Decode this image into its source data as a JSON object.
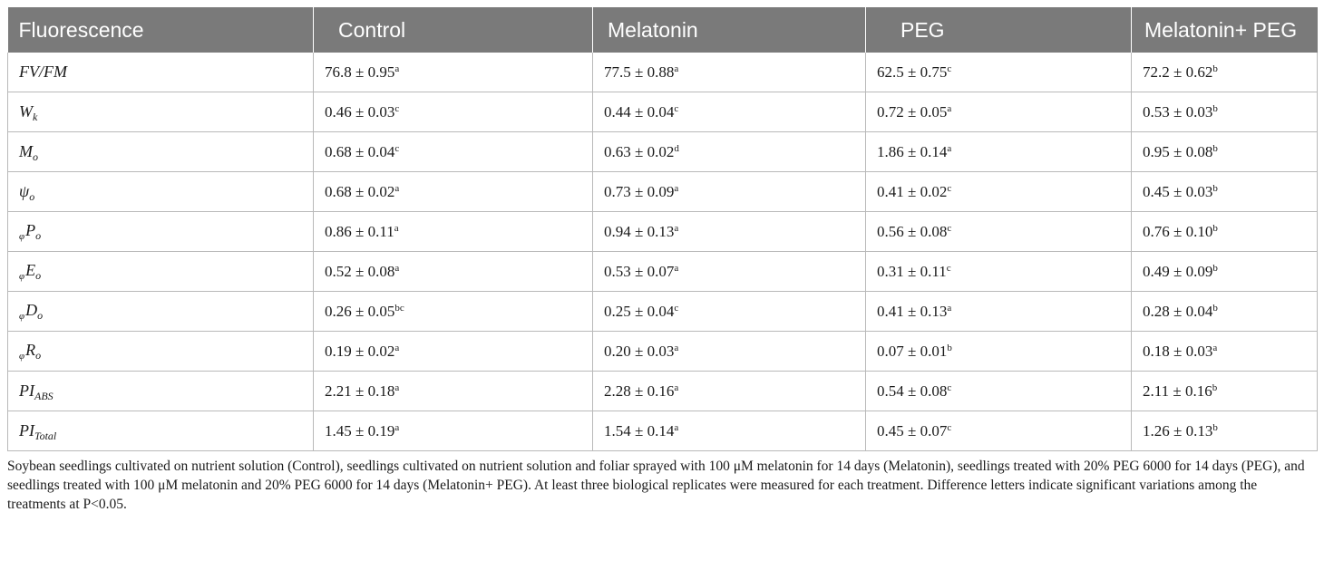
{
  "table": {
    "headers": [
      "Fluorescence",
      "Control",
      "Melatonin",
      "PEG",
      "Melatonin+ PEG"
    ],
    "rows": [
      {
        "name": "FV/FM",
        "sub": "",
        "pre": "",
        "cells": [
          {
            "v": "76.8 ± 0.95",
            "s": "a"
          },
          {
            "v": "77.5 ± 0.88",
            "s": "a"
          },
          {
            "v": "62.5 ± 0.75",
            "s": "c"
          },
          {
            "v": "72.2 ± 0.62",
            "s": "b"
          }
        ]
      },
      {
        "name": "W",
        "sub": "k",
        "pre": "",
        "cells": [
          {
            "v": "0.46 ± 0.03",
            "s": "c"
          },
          {
            "v": "0.44 ± 0.04",
            "s": "c"
          },
          {
            "v": "0.72 ± 0.05",
            "s": "a"
          },
          {
            "v": "0.53 ± 0.03",
            "s": "b"
          }
        ]
      },
      {
        "name": "M",
        "sub": "o",
        "pre": "",
        "cells": [
          {
            "v": "0.68 ± 0.04",
            "s": "c"
          },
          {
            "v": "0.63 ± 0.02",
            "s": "d"
          },
          {
            "v": "1.86 ± 0.14",
            "s": "a"
          },
          {
            "v": "0.95 ± 0.08",
            "s": "b"
          }
        ]
      },
      {
        "name": "ψ",
        "sub": "o",
        "pre": "",
        "cells": [
          {
            "v": "0.68 ± 0.02",
            "s": "a"
          },
          {
            "v": "0.73 ± 0.09",
            "s": "a"
          },
          {
            "v": "0.41 ± 0.02",
            "s": "c"
          },
          {
            "v": "0.45 ± 0.03",
            "s": "b"
          }
        ]
      },
      {
        "name": "P",
        "sub": "o",
        "pre": "φ",
        "cells": [
          {
            "v": "0.86 ± 0.11",
            "s": "a"
          },
          {
            "v": "0.94 ± 0.13",
            "s": "a"
          },
          {
            "v": "0.56 ± 0.08",
            "s": "c"
          },
          {
            "v": "0.76 ± 0.10",
            "s": "b"
          }
        ]
      },
      {
        "name": "E",
        "sub": "o",
        "pre": "φ",
        "cells": [
          {
            "v": "0.52 ± 0.08",
            "s": "a"
          },
          {
            "v": "0.53 ± 0.07",
            "s": "a"
          },
          {
            "v": "0.31 ± 0.11",
            "s": "c"
          },
          {
            "v": "0.49 ± 0.09",
            "s": "b"
          }
        ]
      },
      {
        "name": "D",
        "sub": "o",
        "pre": "φ",
        "cells": [
          {
            "v": "0.26 ± 0.05",
            "s": "bc"
          },
          {
            "v": "0.25 ± 0.04",
            "s": "c"
          },
          {
            "v": "0.41 ± 0.13",
            "s": "a"
          },
          {
            "v": "0.28 ± 0.04",
            "s": "b"
          }
        ]
      },
      {
        "name": "R",
        "sub": "o",
        "pre": "φ",
        "cells": [
          {
            "v": "0.19 ± 0.02",
            "s": "a"
          },
          {
            "v": "0.20 ± 0.03",
            "s": "a"
          },
          {
            "v": "0.07 ± 0.01",
            "s": "b"
          },
          {
            "v": "0.18 ± 0.03",
            "s": "a"
          }
        ]
      },
      {
        "name": "PI",
        "sub": "ABS",
        "pre": "",
        "cells": [
          {
            "v": "2.21 ± 0.18",
            "s": "a"
          },
          {
            "v": "2.28 ± 0.16",
            "s": "a"
          },
          {
            "v": "0.54 ± 0.08",
            "s": "c"
          },
          {
            "v": "2.11 ± 0.16",
            "s": "b"
          }
        ]
      },
      {
        "name": "PI",
        "sub": "Total",
        "pre": "",
        "cells": [
          {
            "v": "1.45 ± 0.19",
            "s": "a"
          },
          {
            "v": "1.54 ± 0.14",
            "s": "a"
          },
          {
            "v": "0.45 ± 0.07",
            "s": "c"
          },
          {
            "v": "1.26 ± 0.13",
            "s": "b"
          }
        ]
      }
    ]
  },
  "caption": {
    "text": "Soybean seedlings cultivated on nutrient solution (Control), seedlings cultivated on nutrient solution and foliar sprayed with 100 μM melatonin for 14 days (Melatonin), seedlings treated with 20% PEG 6000 for 14 days (PEG), and seedlings treated with 100 μM melatonin and 20% PEG 6000 for 14 days (Melatonin+ PEG). At least three biological replicates were measured for each treatment. Difference letters indicate significant variations among the treatments at P<0.05."
  }
}
